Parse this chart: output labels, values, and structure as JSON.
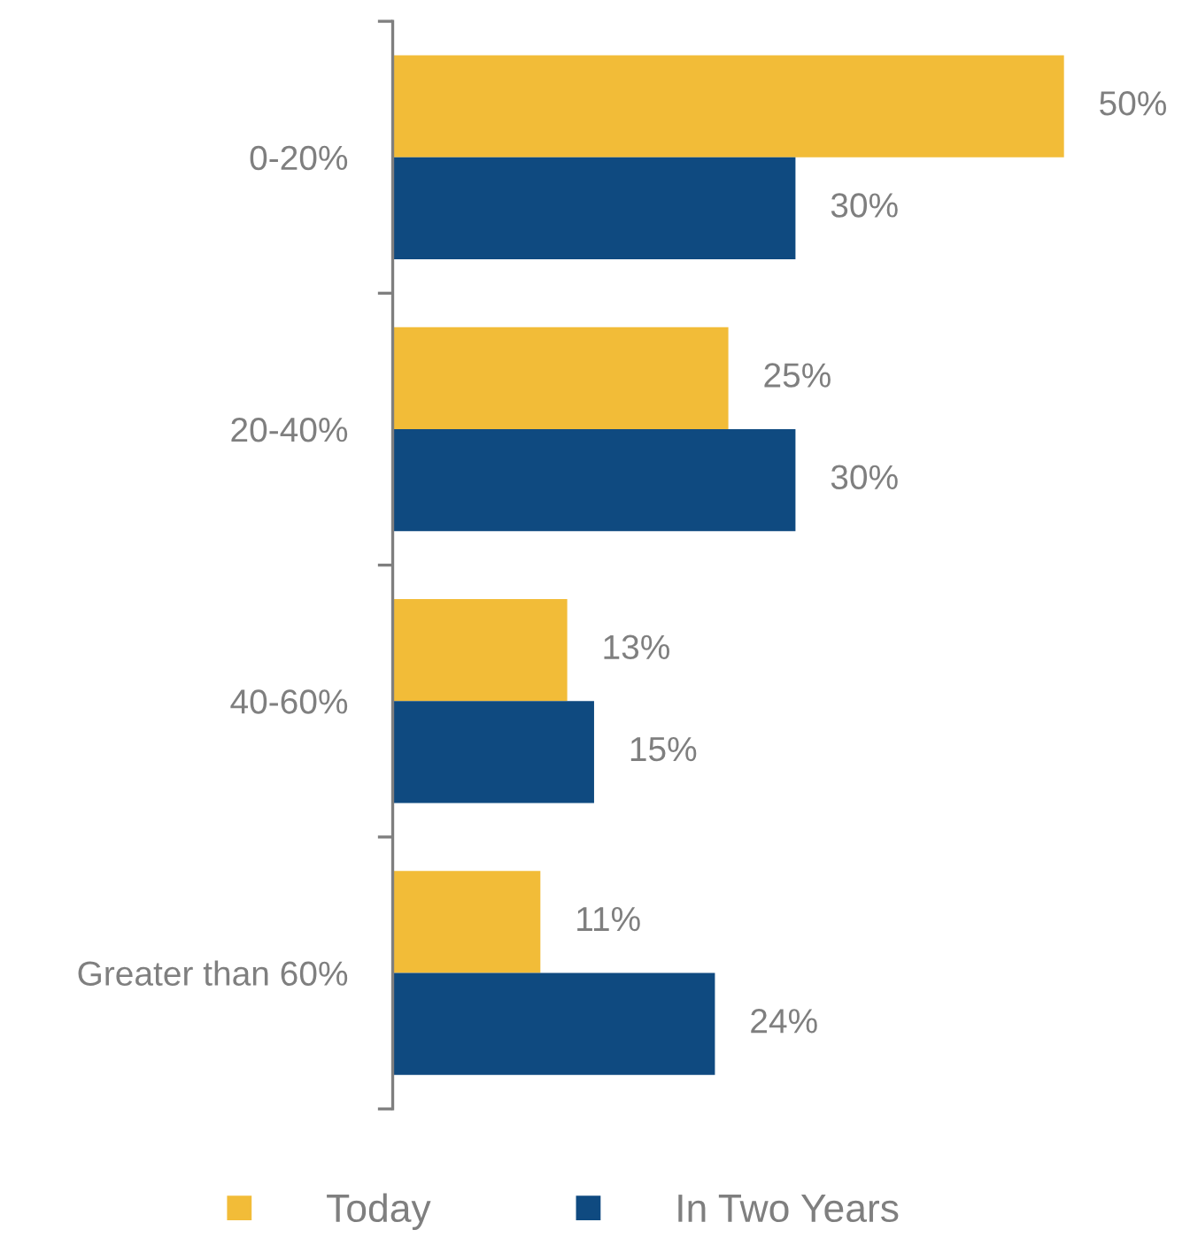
{
  "chart_data": {
    "type": "bar",
    "orientation": "horizontal",
    "categories": [
      "0-20%",
      "20-40%",
      "40-60%",
      "Greater than 60%"
    ],
    "series": [
      {
        "name": "Today",
        "color": "#f2bc38",
        "values": [
          50,
          25,
          13,
          11
        ],
        "value_labels": [
          "50%",
          "25%",
          "13%",
          "11%"
        ]
      },
      {
        "name": "In Two Years",
        "color": "#0f4a80",
        "values": [
          30,
          30,
          15,
          24
        ],
        "value_labels": [
          "30%",
          "30%",
          "15%",
          "24%"
        ]
      }
    ],
    "legend": "bottom",
    "grid": false
  }
}
